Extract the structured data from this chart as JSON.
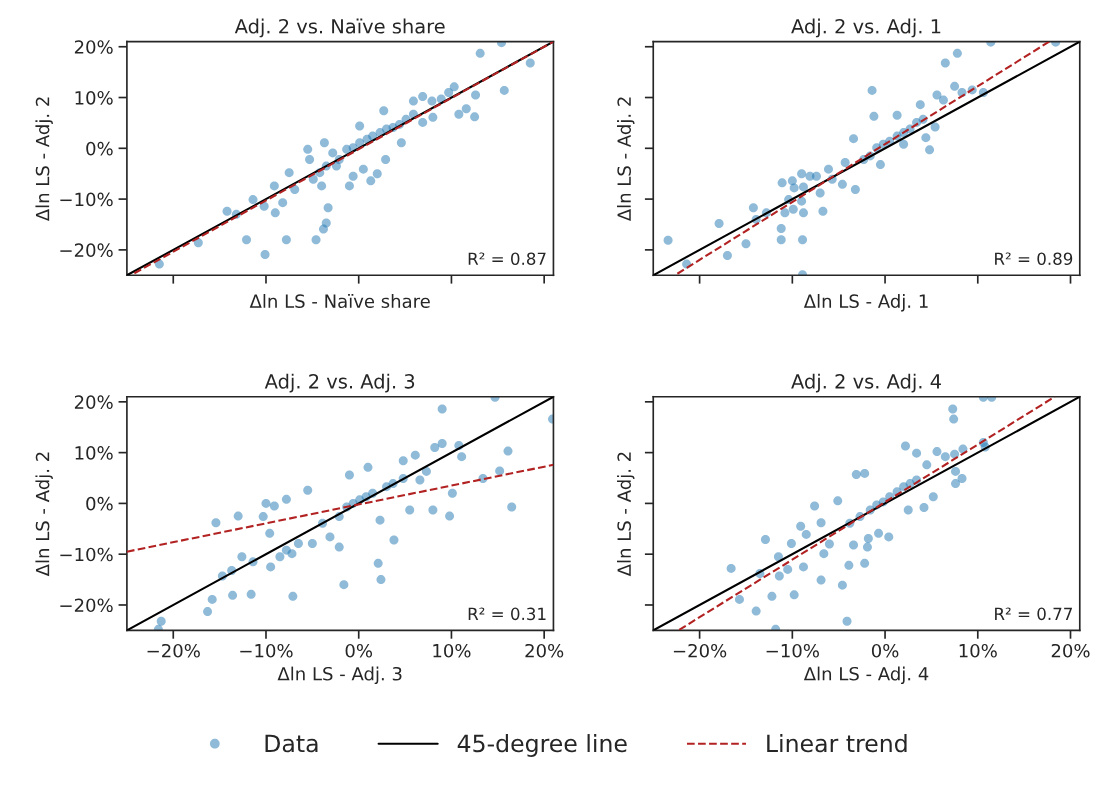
{
  "chart_data": [
    {
      "type": "scatter",
      "title": "Adj. 2 vs. Naïve share",
      "xlabel": "Δln LS - Naïve share",
      "ylabel": "Δln LS - Adj. 2",
      "xlim": [
        -25,
        21
      ],
      "ylim": [
        -25,
        21
      ],
      "tick_labels": "y",
      "legend": "bottom",
      "annotations": [
        "R² = 0.87"
      ],
      "xticks": [
        {
          "value": -20,
          "label": null
        },
        {
          "value": -10,
          "label": null
        },
        {
          "value": 0,
          "label": null
        },
        {
          "value": 10,
          "label": null
        },
        {
          "value": 20,
          "label": null
        }
      ],
      "yticks": [
        {
          "value": -20,
          "label": "−20%"
        },
        {
          "value": -10,
          "label": "−10%"
        },
        {
          "value": 0,
          "label": "0%"
        },
        {
          "value": 10,
          "label": "10%"
        },
        {
          "value": 20,
          "label": "20%"
        }
      ],
      "series": [
        {
          "name": "Data",
          "type": "scatter",
          "marker": "circle",
          "color": "#1f77b4",
          "x": [
            -21.5,
            -17.3,
            -14.2,
            -13.2,
            -12.1,
            -11.4,
            -10.2,
            -10.1,
            -9.0,
            -9.1,
            -8.2,
            -7.8,
            -7.5,
            -6.9,
            -5.5,
            -5.3,
            -4.6,
            -3.8,
            -3.3,
            -3.5,
            -4.0,
            -3.7,
            -1.0,
            -0.6,
            0.5,
            1.3,
            2.0,
            2.9,
            2.7,
            0.1,
            -2.8,
            -2.1,
            -1.3,
            -0.6,
            0.1,
            0.9,
            1.5,
            2.3,
            3.0,
            3.7,
            4.4,
            5.1,
            5.9,
            4.6,
            5.9,
            6.9,
            7.9,
            8.9,
            8.0,
            6.9,
            9.7,
            10.3,
            10.8,
            11.6,
            12.5,
            12.6,
            13.1,
            15.4,
            15.7,
            18.5,
            -4.2,
            -4.9,
            -2.4,
            -3.5
          ],
          "values": [
            -22.8,
            -18.6,
            -12.4,
            -13.0,
            -18.0,
            -10.1,
            -11.4,
            -20.9,
            -12.7,
            -7.4,
            -10.7,
            -18.0,
            -4.8,
            -8.1,
            -0.2,
            -2.2,
            -18.0,
            -15.9,
            -11.7,
            -14.7,
            -7.4,
            1.1,
            -7.4,
            -5.5,
            -4.1,
            -6.4,
            -5.0,
            -2.2,
            7.4,
            4.4,
            -0.9,
            -2.2,
            -0.2,
            0.1,
            1.1,
            1.8,
            2.4,
            3.1,
            3.8,
            4.1,
            4.7,
            5.7,
            6.7,
            1.1,
            9.3,
            10.2,
            9.3,
            9.7,
            6.1,
            5.1,
            11.0,
            12.1,
            6.7,
            7.8,
            6.2,
            10.5,
            18.7,
            20.8,
            11.4,
            16.8,
            -4.8,
            -6.1,
            -3.5,
            -3.5
          ]
        },
        {
          "name": "45-degree line",
          "type": "line",
          "color": "#000000",
          "line_style": "solid",
          "x": [
            -25,
            21
          ],
          "values": [
            -25,
            21
          ]
        },
        {
          "name": "Linear trend",
          "type": "line",
          "color": "#b22222",
          "line_style": "dashed",
          "x": [
            -24.2,
            21
          ],
          "values": [
            -24.6,
            21
          ]
        }
      ]
    },
    {
      "type": "scatter",
      "title": "Adj. 2 vs. Adj. 1",
      "xlabel": "Δln LS - Adj. 1",
      "ylabel": "Δln LS - Adj. 2",
      "xlim": [
        -25,
        21
      ],
      "ylim": [
        -25,
        21
      ],
      "tick_labels": false,
      "annotations": [
        "R² = 0.89"
      ],
      "xticks": [
        {
          "value": -20,
          "label": null
        },
        {
          "value": -10,
          "label": null
        },
        {
          "value": 0,
          "label": null
        },
        {
          "value": 10,
          "label": null
        },
        {
          "value": 20,
          "label": null
        }
      ],
      "yticks": [
        {
          "value": -20,
          "label": null
        },
        {
          "value": -10,
          "label": null
        },
        {
          "value": 0,
          "label": null
        },
        {
          "value": 10,
          "label": null
        },
        {
          "value": 20,
          "label": null
        }
      ],
      "series": [
        {
          "type": "scatter",
          "marker": "circle",
          "color": "#1f77b4",
          "x": [
            -23.4,
            -21.4,
            -17.9,
            -17.0,
            -15.0,
            -14.2,
            -12.8,
            -13.9,
            -11.2,
            -11.2,
            -10.8,
            -10.4,
            -9.9,
            -8.9,
            -8.9,
            -8.8,
            -9.0,
            -11.1,
            -10.0,
            -9.8,
            -8.8,
            -9.0,
            -8.1,
            -7.4,
            -7.0,
            -6.7,
            -6.1,
            -5.7,
            -4.6,
            -3.2,
            -4.3,
            -3.4,
            -2.3,
            -1.6,
            -0.9,
            -0.2,
            0.5,
            1.3,
            2.0,
            2.7,
            3.4,
            4.1,
            4.8,
            4.4,
            5.4,
            -1.4,
            -1.2,
            1.3,
            3.8,
            5.6,
            6.3,
            7.5,
            8.3,
            9.4,
            10.6,
            6.5,
            7.8,
            11.4,
            18.4,
            -0.5,
            2.0
          ],
          "values": [
            -18.1,
            -22.8,
            -14.8,
            -21.1,
            -18.8,
            -11.7,
            -12.7,
            -14.0,
            -18.0,
            -15.8,
            -12.7,
            -10.1,
            -12.0,
            -18.0,
            -24.9,
            -12.7,
            -10.4,
            -6.8,
            -6.4,
            -7.8,
            -7.6,
            -5.0,
            -5.5,
            -5.5,
            -8.8,
            -12.4,
            -4.1,
            -6.1,
            -7.1,
            -8.1,
            -2.8,
            1.9,
            -2.2,
            -1.5,
            0.1,
            0.8,
            1.4,
            2.4,
            3.1,
            3.8,
            5.1,
            5.7,
            -0.3,
            2.1,
            4.2,
            11.4,
            6.3,
            6.5,
            8.6,
            10.5,
            9.5,
            12.2,
            11.0,
            11.5,
            11.0,
            16.8,
            18.7,
            20.9,
            20.9,
            -3.2,
            0.8
          ]
        },
        {
          "type": "line",
          "color": "#000000",
          "line_style": "solid",
          "x": [
            -25,
            21
          ],
          "values": [
            -25,
            21
          ]
        },
        {
          "type": "line",
          "color": "#b22222",
          "line_style": "dashed",
          "x": [
            -22.4,
            17.7
          ],
          "values": [
            -24.7,
            21
          ]
        }
      ]
    },
    {
      "type": "scatter",
      "title": "Adj. 2 vs. Adj. 3",
      "xlabel": "Δln LS - Adj. 3",
      "ylabel": "Δln LS - Adj. 2",
      "xlim": [
        -25,
        21
      ],
      "ylim": [
        -25,
        21
      ],
      "annotations": [
        "R² = 0.31"
      ],
      "xticks": [
        {
          "value": -20,
          "label": "−20%"
        },
        {
          "value": -10,
          "label": "−10%"
        },
        {
          "value": 0,
          "label": "0%"
        },
        {
          "value": 10,
          "label": "10%"
        },
        {
          "value": 20,
          "label": "20%"
        }
      ],
      "yticks": [
        {
          "value": -20,
          "label": "−20%"
        },
        {
          "value": -10,
          "label": "−10%"
        },
        {
          "value": 0,
          "label": "0%"
        },
        {
          "value": 10,
          "label": "10%"
        },
        {
          "value": 20,
          "label": "20%"
        }
      ],
      "series": [
        {
          "type": "scatter",
          "marker": "circle",
          "color": "#1f77b4",
          "x": [
            -21.6,
            -21.3,
            -16.3,
            -15.8,
            -15.4,
            -14.7,
            -13.7,
            -13.6,
            -12.6,
            -13.0,
            -11.6,
            -11.4,
            -10.3,
            -10.0,
            -9.1,
            -9.6,
            -9.5,
            -8.5,
            -7.8,
            -7.8,
            -7.2,
            -7.1,
            -6.5,
            -5.5,
            -5.0,
            -3.9,
            -3.1,
            -2.1,
            -1.6,
            -2.1,
            -1.0,
            -1.3,
            -0.6,
            0.1,
            1.0,
            0.8,
            1.5,
            2.1,
            2.4,
            2.3,
            3.8,
            3.0,
            3.7,
            4.8,
            4.8,
            5.5,
            6.1,
            6.6,
            7.3,
            8.2,
            8.0,
            9.0,
            9.0,
            9.8,
            10.1,
            10.8,
            11.1,
            13.4,
            15.2,
            16.1,
            16.5,
            14.7,
            20.9
          ],
          "values": [
            -24.8,
            -23.2,
            -21.3,
            -18.9,
            -3.8,
            -14.3,
            -13.2,
            -18.1,
            -10.5,
            -2.5,
            -17.9,
            -11.5,
            -2.6,
            0.0,
            -0.5,
            -5.9,
            -12.5,
            -10.5,
            0.8,
            -9.2,
            -9.9,
            -18.3,
            -7.9,
            2.6,
            -7.9,
            -3.9,
            -6.6,
            -8.6,
            -16.0,
            -2.6,
            5.6,
            -0.7,
            0.0,
            0.7,
            7.1,
            1.3,
            2.0,
            -11.8,
            -15.0,
            -3.3,
            -7.2,
            3.3,
            3.9,
            4.9,
            8.4,
            -1.3,
            9.5,
            4.6,
            6.3,
            11.0,
            -1.3,
            11.8,
            18.6,
            -2.5,
            2.0,
            11.4,
            9.2,
            4.9,
            6.4,
            10.3,
            -0.7,
            20.9,
            16.6
          ]
        },
        {
          "type": "line",
          "color": "#000000",
          "line_style": "solid",
          "x": [
            -25,
            21
          ],
          "values": [
            -25,
            21
          ]
        },
        {
          "type": "line",
          "color": "#b22222",
          "line_style": "dashed",
          "x": [
            -25,
            21
          ],
          "values": [
            -9.5,
            7.6
          ]
        }
      ]
    },
    {
      "type": "scatter",
      "title": "Adj. 2 vs. Adj. 4",
      "xlabel": "Δln LS - Adj. 4",
      "ylabel": "Δln LS - Adj. 2",
      "xlim": [
        -25,
        21
      ],
      "ylim": [
        -25,
        21
      ],
      "tick_labels": "x",
      "annotations": [
        "R² = 0.77"
      ],
      "xticks": [
        {
          "value": -20,
          "label": "−20%"
        },
        {
          "value": -10,
          "label": "−10%"
        },
        {
          "value": 0,
          "label": "0%"
        },
        {
          "value": 10,
          "label": "10%"
        },
        {
          "value": 20,
          "label": "20%"
        }
      ],
      "yticks": [
        {
          "value": -20,
          "label": null
        },
        {
          "value": -10,
          "label": null
        },
        {
          "value": 0,
          "label": null
        },
        {
          "value": 10,
          "label": null
        },
        {
          "value": 20,
          "label": null
        }
      ],
      "series": [
        {
          "type": "scatter",
          "marker": "circle",
          "color": "#1f77b4",
          "x": [
            -16.6,
            -15.7,
            -13.9,
            -13.5,
            -12.9,
            -12.2,
            -11.8,
            -11.5,
            -11.4,
            -10.5,
            -10.1,
            -9.8,
            -9.1,
            -8.8,
            -8.5,
            -7.6,
            -6.9,
            -6.9,
            -6.6,
            -6.0,
            -5.1,
            -4.6,
            -4.1,
            -3.9,
            -3.4,
            -3.1,
            -2.2,
            -2.2,
            -1.9,
            -1.8,
            -0.7,
            0.4,
            -3.8,
            -2.7,
            -1.6,
            -0.9,
            -0.2,
            0.5,
            1.3,
            2.0,
            2.7,
            3.4,
            2.5,
            4.2,
            5.2,
            2.2,
            3.4,
            4.5,
            5.6,
            6.5,
            7.5,
            7.6,
            8.3,
            7.6,
            8.4,
            7.4,
            7.3,
            10.6,
            10.8,
            10.6,
            11.5
          ],
          "values": [
            -12.8,
            -18.9,
            -21.2,
            -13.8,
            -7.1,
            -18.3,
            -24.8,
            -10.5,
            -14.3,
            -13.0,
            -7.9,
            -18.0,
            -4.5,
            -12.5,
            -6.1,
            -0.5,
            -3.8,
            -15.1,
            -9.9,
            -8.0,
            0.5,
            -16.1,
            -23.2,
            -12.2,
            -8.2,
            5.7,
            -11.8,
            5.9,
            -8.6,
            -6.9,
            -5.9,
            -6.6,
            -3.9,
            -2.6,
            -1.3,
            -0.3,
            0.3,
            1.3,
            2.3,
            3.3,
            3.9,
            4.6,
            -1.3,
            -0.8,
            1.3,
            11.3,
            9.9,
            7.6,
            10.2,
            9.2,
            9.7,
            3.9,
            4.9,
            6.3,
            10.7,
            16.6,
            18.6,
            12.0,
            11.1,
            20.9,
            20.9
          ]
        },
        {
          "type": "line",
          "color": "#000000",
          "line_style": "solid",
          "x": [
            -25,
            21
          ],
          "values": [
            -25,
            21
          ]
        },
        {
          "type": "line",
          "color": "#b22222",
          "line_style": "dashed",
          "x": [
            -22.2,
            18.3
          ],
          "values": [
            -24.9,
            21
          ]
        }
      ]
    }
  ]
}
